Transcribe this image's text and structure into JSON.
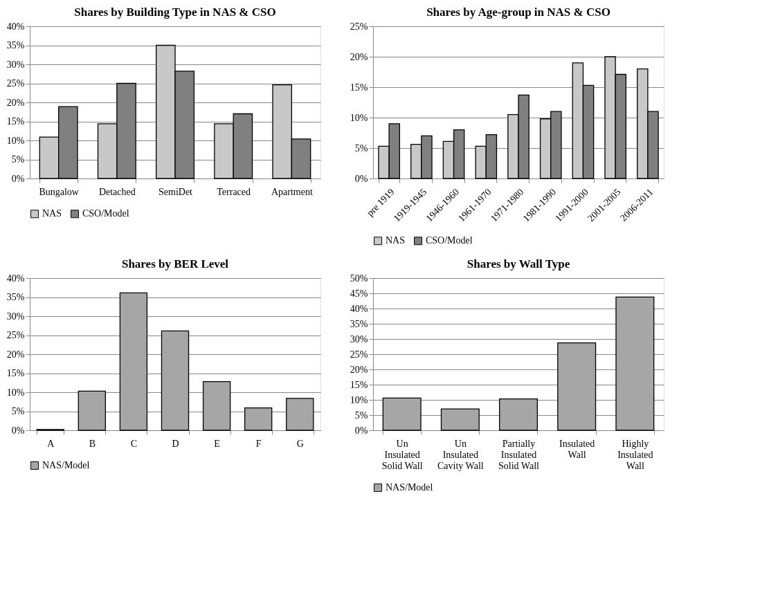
{
  "chart_data": [
    {
      "type": "bar",
      "title": "Shares by Building Type in NAS & CSO",
      "categories": [
        "Bungalow",
        "Detached",
        "SemiDet",
        "Terraced",
        "Apartment"
      ],
      "series": [
        {
          "name": "NAS",
          "color": "#c8c8c8",
          "values": [
            10.9,
            14.4,
            35,
            14.4,
            24.6
          ]
        },
        {
          "name": "CSO/Model",
          "color": "#808080",
          "values": [
            18.9,
            25,
            28.2,
            17,
            10.4
          ]
        }
      ],
      "ylim": [
        0,
        40
      ],
      "yticks": [
        {
          "value": 0,
          "label": "0%"
        },
        {
          "value": 5,
          "label": "5%"
        },
        {
          "value": 10,
          "label": "10%"
        },
        {
          "value": 15,
          "label": "15%"
        },
        {
          "value": 20,
          "label": "20%"
        },
        {
          "value": 25,
          "label": "25%"
        },
        {
          "value": 30,
          "label": "30%"
        },
        {
          "value": 35,
          "label": "35%"
        },
        {
          "value": 40,
          "label": "40%"
        }
      ],
      "grid": "y",
      "legend": "bottom"
    },
    {
      "type": "bar",
      "title": "Shares by Age-group in NAS & CSO",
      "categories": [
        "pre 1919",
        "1919-1945",
        "1946-1960",
        "1961-1970",
        "1971-1980",
        "1981-1990",
        "1991-2000",
        "2001-2005",
        "2006-2011"
      ],
      "series": [
        {
          "name": "NAS",
          "color": "#c8c8c8",
          "values": [
            5.3,
            5.6,
            6.1,
            5.3,
            10.5,
            9.8,
            19,
            20,
            18
          ]
        },
        {
          "name": "CSO/Model",
          "color": "#808080",
          "values": [
            9,
            7,
            8,
            7.2,
            13.7,
            11,
            15.3,
            17.1,
            11
          ]
        }
      ],
      "ylim": [
        0,
        25
      ],
      "yticks": [
        {
          "value": 0,
          "label": "0%"
        },
        {
          "value": 5,
          "label": "5%"
        },
        {
          "value": 10,
          "label": "10%"
        },
        {
          "value": 15,
          "label": "15%"
        },
        {
          "value": 20,
          "label": "20%"
        },
        {
          "value": 25,
          "label": "25%"
        }
      ],
      "grid": "y",
      "legend": "bottom"
    },
    {
      "type": "bar",
      "title": "Shares by BER Level",
      "categories": [
        "A",
        "B",
        "C",
        "D",
        "E",
        "F",
        "G"
      ],
      "series": [
        {
          "name": "NAS/Model",
          "color": "#a6a6a6",
          "values": [
            0.2,
            10.3,
            36.1,
            26.1,
            12.8,
            5.9,
            8.4
          ]
        }
      ],
      "ylim": [
        0,
        40
      ],
      "yticks": [
        {
          "value": 0,
          "label": "0%"
        },
        {
          "value": 5,
          "label": "5%"
        },
        {
          "value": 10,
          "label": "10%"
        },
        {
          "value": 15,
          "label": "15%"
        },
        {
          "value": 20,
          "label": "20%"
        },
        {
          "value": 25,
          "label": "25%"
        },
        {
          "value": 30,
          "label": "30%"
        },
        {
          "value": 35,
          "label": "35%"
        },
        {
          "value": 40,
          "label": "40%"
        }
      ],
      "grid": "y",
      "legend": "bottom"
    },
    {
      "type": "bar",
      "title": "Shares by Wall Type",
      "categories": [
        "Un\nInsulated\nSolid Wall",
        "Un\nInsulated\nCavity Wall",
        "Partially\nInsulated\nSolid Wall",
        "Insulated\nWall",
        "Highly\nInsulated\nWall"
      ],
      "series": [
        {
          "name": "NAS/Model",
          "color": "#a6a6a6",
          "values": [
            10.6,
            7,
            10.3,
            28.7,
            43.8
          ]
        }
      ],
      "ylim": [
        0,
        50
      ],
      "yticks": [
        {
          "value": 0,
          "label": "0%"
        },
        {
          "value": 5,
          "label": "5%"
        },
        {
          "value": 10,
          "label": "10%"
        },
        {
          "value": 15,
          "label": "15%"
        },
        {
          "value": 20,
          "label": "20%"
        },
        {
          "value": 25,
          "label": "25%"
        },
        {
          "value": 30,
          "label": "30%"
        },
        {
          "value": 35,
          "label": "35%"
        },
        {
          "value": 40,
          "label": "40%"
        },
        {
          "value": 45,
          "label": "45%"
        },
        {
          "value": 50,
          "label": "50%"
        }
      ],
      "grid": "y",
      "legend": "bottom"
    }
  ]
}
